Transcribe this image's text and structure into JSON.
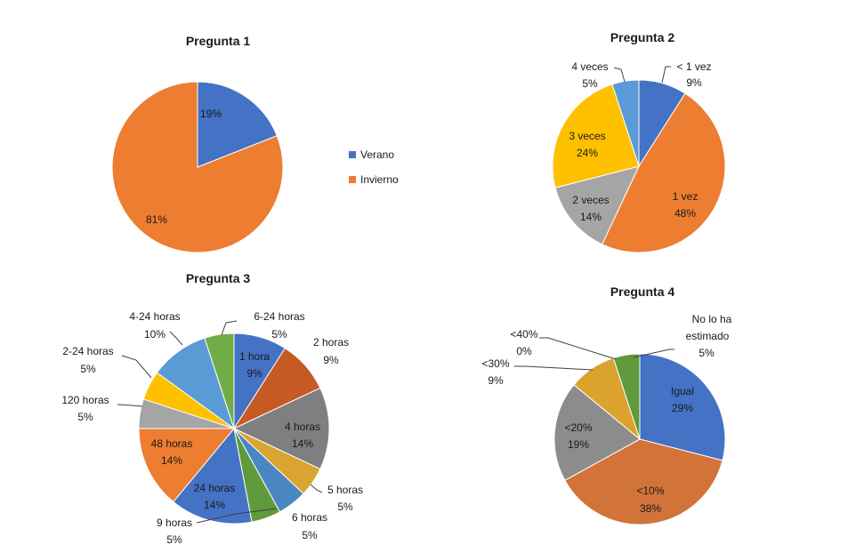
{
  "chart_data": [
    {
      "type": "pie",
      "title": "Pregunta 1",
      "slices": [
        {
          "label": "Verano",
          "value": 19,
          "pct": "19%",
          "color": "#4472c4"
        },
        {
          "label": "Invierno",
          "value": 81,
          "pct": "81%",
          "color": "#ed7d31"
        }
      ],
      "legend": [
        "Verano",
        "Invierno"
      ]
    },
    {
      "type": "pie",
      "title": "Pregunta 2",
      "slices": [
        {
          "label": "< 1 vez",
          "value": 9,
          "pct": "9%",
          "color": "#4472c4"
        },
        {
          "label": "1 vez",
          "value": 48,
          "pct": "48%",
          "color": "#ed7d31"
        },
        {
          "label": "2 veces",
          "value": 14,
          "pct": "14%",
          "color": "#a5a5a5"
        },
        {
          "label": "3 veces",
          "value": 24,
          "pct": "24%",
          "color": "#ffc000"
        },
        {
          "label": "4 veces",
          "value": 5,
          "pct": "5%",
          "color": "#5b9bd5"
        }
      ]
    },
    {
      "type": "pie",
      "title": "Pregunta 3",
      "slices": [
        {
          "label": "1 hora",
          "value": 9,
          "pct": "9%",
          "color": "#4472c4"
        },
        {
          "label": "2 horas",
          "value": 9,
          "pct": "9%",
          "color": "#c55a24"
        },
        {
          "label": "4 horas",
          "value": 14,
          "pct": "14%",
          "color": "#7f7f7f"
        },
        {
          "label": "5 horas",
          "value": 5,
          "pct": "5%",
          "color": "#d9a431"
        },
        {
          "label": "6 horas",
          "value": 5,
          "pct": "5%",
          "color": "#4a86c2"
        },
        {
          "label": "9 horas",
          "value": 5,
          "pct": "5%",
          "color": "#5f9a3c"
        },
        {
          "label": "24 horas",
          "value": 14,
          "pct": "14%",
          "color": "#4472c4"
        },
        {
          "label": "48 horas",
          "value": 14,
          "pct": "14%",
          "color": "#ed7d31"
        },
        {
          "label": "120 horas",
          "value": 5,
          "pct": "5%",
          "color": "#a5a5a5"
        },
        {
          "label": "2-24 horas",
          "value": 5,
          "pct": "5%",
          "color": "#ffc000"
        },
        {
          "label": "4-24 horas",
          "value": 10,
          "pct": "10%",
          "color": "#5b9bd5"
        },
        {
          "label": "6-24 horas",
          "value": 5,
          "pct": "5%",
          "color": "#70ad47"
        }
      ]
    },
    {
      "type": "pie",
      "title": "Pregunta 4",
      "slices": [
        {
          "label": "Igual",
          "value": 29,
          "pct": "29%",
          "color": "#4472c4"
        },
        {
          "label": "<10%",
          "value": 38,
          "pct": "38%",
          "color": "#d2733a"
        },
        {
          "label": "<20%",
          "value": 19,
          "pct": "19%",
          "color": "#8c8c8c"
        },
        {
          "label": "<30%",
          "value": 9,
          "pct": "9%",
          "color": "#dba32e"
        },
        {
          "label": "<40%",
          "value": 0,
          "pct": "0%",
          "color": "#4472c4"
        },
        {
          "label": "No lo ha estimado",
          "value": 5,
          "pct": "5%",
          "color": "#5f9a3c"
        }
      ]
    }
  ]
}
